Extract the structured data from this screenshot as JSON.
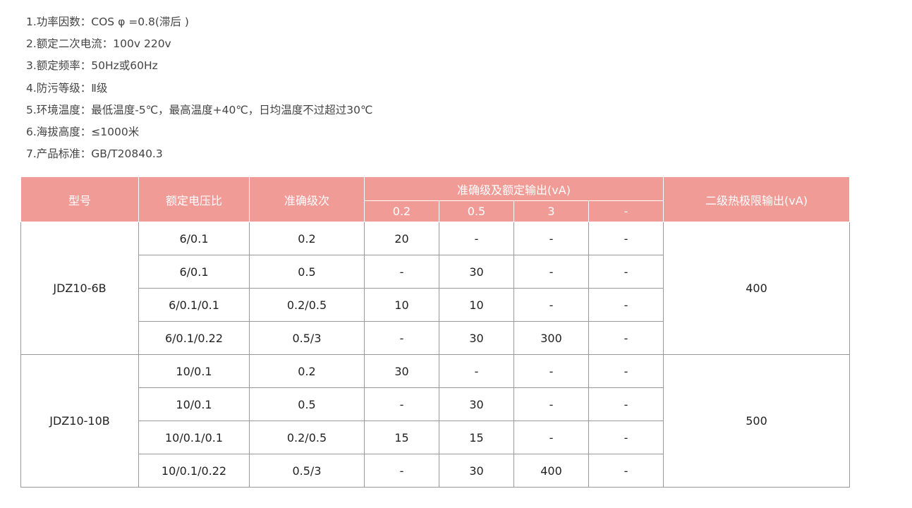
{
  "specs": [
    "1.功率因数：COS φ =0.8(滞后 )",
    "2.额定二次电流：100v  220v",
    "3.额定频率：50Hz或60Hz",
    "4.防污等级：Ⅱ级",
    "5.环境温度：最低温度-5℃，最高温度+40℃，日均温度不过超过30℃",
    "6.海拔高度：≤1000米",
    "7.产品标准：GB/T20840.3"
  ],
  "table": {
    "headers": {
      "model": "型号",
      "ratio": "额定电压比",
      "accuracy": "准确级次",
      "output_group": "准确级及额定输出(vA)",
      "sub": [
        "0.2",
        "0.5",
        "3",
        "-"
      ],
      "thermal": "二级热极限输出(vA)"
    },
    "groups": [
      {
        "model": "JDZ10-6B",
        "thermal": "400",
        "rows": [
          [
            "6/0.1",
            "0.2",
            "20",
            "-",
            "-",
            "-"
          ],
          [
            "6/0.1",
            "0.5",
            "-",
            "30",
            "-",
            "-"
          ],
          [
            "6/0.1/0.1",
            "0.2/0.5",
            "10",
            "10",
            "-",
            "-"
          ],
          [
            "6/0.1/0.22",
            "0.5/3",
            "-",
            "30",
            "300",
            "-"
          ]
        ]
      },
      {
        "model": "JDZ10-10B",
        "thermal": "500",
        "rows": [
          [
            "10/0.1",
            "0.2",
            "30",
            "-",
            "-",
            "-"
          ],
          [
            "10/0.1",
            "0.5",
            "-",
            "30",
            "-",
            "-"
          ],
          [
            "10/0.1/0.1",
            "0.2/0.5",
            "15",
            "15",
            "-",
            "-"
          ],
          [
            "10/0.1/0.22",
            "0.5/3",
            "-",
            "30",
            "400",
            "-"
          ]
        ]
      }
    ]
  },
  "colors": {
    "header_bg": "#f09b96"
  }
}
